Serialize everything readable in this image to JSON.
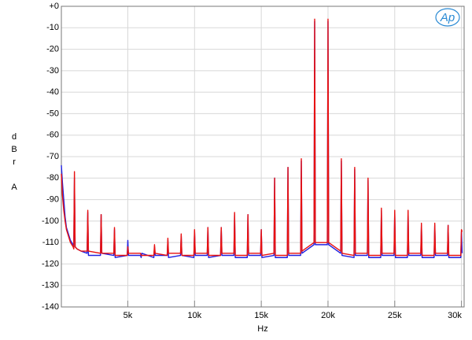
{
  "chart_data": {
    "type": "line",
    "ylabel": "dBr A",
    "xlabel": "Hz",
    "logo": "Ap",
    "xlim": [
      20,
      30200
    ],
    "ylim": [
      -140,
      0
    ],
    "xticks": [
      {
        "value": 5000,
        "label": "5k"
      },
      {
        "value": 10000,
        "label": "10k"
      },
      {
        "value": 15000,
        "label": "15k"
      },
      {
        "value": 20000,
        "label": "20k"
      },
      {
        "value": 25000,
        "label": "25k"
      },
      {
        "value": 30000,
        "label": "30k"
      }
    ],
    "yticks": [
      {
        "value": 0,
        "label": "+0"
      },
      -10,
      -20,
      -30,
      -40,
      -50,
      -60,
      -70,
      -80,
      -90,
      -100,
      -110,
      -120,
      -130,
      -140
    ],
    "grid": true,
    "x": [
      20,
      100,
      200,
      300,
      400,
      500,
      600,
      700,
      800,
      900,
      950,
      1000,
      1050,
      1200,
      1500,
      1950,
      2000,
      2050,
      2950,
      3000,
      3050,
      3950,
      4000,
      4050,
      4950,
      5000,
      5050,
      5950,
      6000,
      6050,
      6950,
      7000,
      7050,
      7950,
      8000,
      8050,
      8950,
      9000,
      9050,
      9950,
      10000,
      10050,
      10950,
      11000,
      11050,
      11950,
      12000,
      12050,
      12950,
      13000,
      13050,
      13950,
      14000,
      14050,
      14950,
      15000,
      15050,
      15950,
      16000,
      16050,
      16950,
      17000,
      17050,
      17950,
      18000,
      18050,
      18950,
      19000,
      19050,
      19950,
      20000,
      20050,
      20950,
      21000,
      21050,
      21950,
      22000,
      22050,
      22950,
      23000,
      23050,
      23950,
      24000,
      24050,
      24950,
      25000,
      25050,
      25950,
      26000,
      26050,
      26950,
      27000,
      27050,
      27950,
      28000,
      28050,
      28950,
      29000,
      29050,
      29950,
      30000,
      30050
    ],
    "series": [
      {
        "color": "#2020e0",
        "values": [
          -74,
          -82,
          -90,
          -98,
          -103,
          -105,
          -107,
          -109,
          -110,
          -111,
          -112,
          -80,
          -112,
          -113,
          -114,
          -115,
          -96,
          -116,
          -116,
          -97,
          -115,
          -116,
          -104,
          -117,
          -116,
          -109,
          -116,
          -116,
          -117,
          -115,
          -117,
          -112,
          -116,
          -116,
          -109,
          -117,
          -116,
          -107,
          -116,
          -117,
          -105,
          -116,
          -116,
          -103,
          -117,
          -116,
          -103,
          -116,
          -116,
          -97,
          -117,
          -117,
          -97,
          -116,
          -116,
          -104,
          -117,
          -116,
          -80,
          -117,
          -117,
          -75,
          -116,
          -116,
          -72,
          -115,
          -111,
          -7,
          -111,
          -111,
          -7,
          -111,
          -115,
          -72,
          -116,
          -117,
          -76,
          -116,
          -116,
          -81,
          -117,
          -117,
          -95,
          -116,
          -116,
          -96,
          -117,
          -117,
          -96,
          -116,
          -116,
          -102,
          -117,
          -117,
          -102,
          -116,
          -116,
          -102,
          -117,
          -117,
          -105,
          -115
        ]
      },
      {
        "color": "#e81010",
        "values": [
          -78,
          -88,
          -95,
          -100,
          -104,
          -106,
          -108,
          -110,
          -111,
          -112,
          -113,
          -77,
          -112,
          -113,
          -114,
          -114,
          -95,
          -114,
          -115,
          -97,
          -115,
          -115,
          -103,
          -116,
          -116,
          -112,
          -115,
          -115,
          -116,
          -116,
          -116,
          -111,
          -115,
          -116,
          -108,
          -115,
          -115,
          -106,
          -116,
          -116,
          -104,
          -115,
          -115,
          -103,
          -116,
          -116,
          -103,
          -115,
          -115,
          -96,
          -116,
          -116,
          -97,
          -115,
          -115,
          -104,
          -116,
          -115,
          -80,
          -116,
          -116,
          -75,
          -115,
          -115,
          -71,
          -114,
          -110,
          -6,
          -110,
          -110,
          -6,
          -110,
          -114,
          -71,
          -115,
          -116,
          -75,
          -115,
          -115,
          -80,
          -116,
          -116,
          -94,
          -115,
          -115,
          -95,
          -116,
          -116,
          -95,
          -115,
          -115,
          -101,
          -116,
          -116,
          -101,
          -115,
          -115,
          -102,
          -116,
          -116,
          -104,
          -105
        ]
      }
    ]
  }
}
